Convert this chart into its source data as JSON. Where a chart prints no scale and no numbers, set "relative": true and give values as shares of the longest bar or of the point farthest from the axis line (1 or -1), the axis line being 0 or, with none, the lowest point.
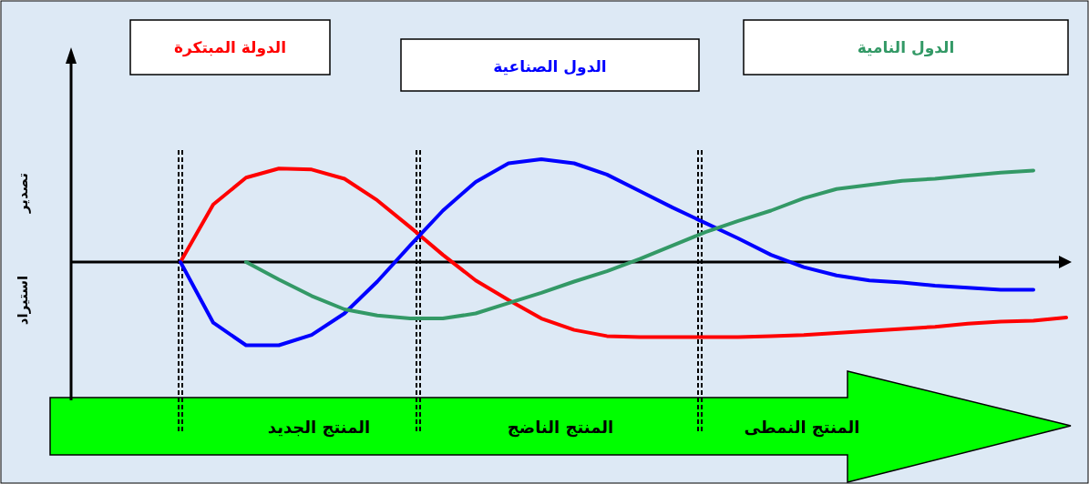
{
  "chart_data": {
    "type": "line",
    "relative": true,
    "marker": "none",
    "line_style": "solid",
    "categories": [
      null,
      null,
      null,
      null,
      null,
      null,
      null,
      null,
      null,
      null,
      null,
      null,
      null,
      null,
      null,
      null,
      null,
      null,
      null,
      null,
      null,
      null,
      null,
      null,
      null,
      null,
      null,
      null
    ],
    "series": [
      {
        "name": "الدولة المبتكرة",
        "color": "#ff0000",
        "values": [
          0,
          0.56,
          0.82,
          0.91,
          0.9,
          0.81,
          0.6,
          0.34,
          0.07,
          -0.18,
          -0.37,
          -0.55,
          -0.66,
          -0.72,
          -0.73,
          -0.73,
          -0.73,
          -0.73,
          -0.72,
          -0.71,
          -0.69,
          -0.67,
          -0.65,
          -0.63,
          -0.6,
          -0.58,
          -0.57,
          -0.54
        ]
      },
      {
        "name": "الدول الصناعية",
        "color": "#0000ff",
        "values": [
          0,
          -0.59,
          -0.81,
          -0.81,
          -0.71,
          -0.5,
          -0.19,
          0.16,
          0.5,
          0.78,
          0.96,
          1.0,
          0.96,
          0.85,
          0.69,
          0.53,
          0.38,
          0.23,
          0.07,
          -0.05,
          -0.13,
          -0.18,
          -0.2,
          -0.23,
          -0.25,
          -0.27,
          -0.27,
          null
        ]
      },
      {
        "name": "الدول النامية",
        "color": "#339966",
        "values": [
          null,
          null,
          0,
          -0.17,
          -0.33,
          -0.46,
          -0.52,
          -0.55,
          -0.55,
          -0.5,
          -0.4,
          -0.3,
          -0.19,
          -0.09,
          0.03,
          0.16,
          0.29,
          0.4,
          0.5,
          0.62,
          0.71,
          0.75,
          0.79,
          0.81,
          0.84,
          0.87,
          0.89,
          null
        ]
      }
    ],
    "annotations": [
      "تصدير",
      "استيراد",
      "المنتج الجديد",
      "المنتج الناضج",
      "المنتج النمطى"
    ]
  }
}
